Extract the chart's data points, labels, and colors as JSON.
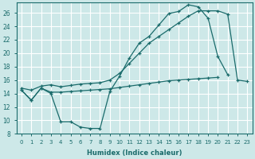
{
  "bg_color": "#cde8e8",
  "line_color": "#1a6b6b",
  "grid_color": "#ffffff",
  "xlabel": "Humidex (Indice chaleur)",
  "ylim": [
    8,
    27.5
  ],
  "xlim": [
    -0.5,
    23.5
  ],
  "yticks": [
    8,
    10,
    12,
    14,
    16,
    18,
    20,
    22,
    24,
    26
  ],
  "xticks": [
    0,
    1,
    2,
    3,
    4,
    5,
    6,
    7,
    8,
    9,
    10,
    11,
    12,
    13,
    14,
    15,
    16,
    17,
    18,
    19,
    20,
    21,
    22,
    23
  ],
  "x": [
    0,
    1,
    2,
    3,
    4,
    5,
    6,
    7,
    8,
    9,
    10,
    11,
    12,
    13,
    14,
    15,
    16,
    17,
    18,
    19,
    20,
    21,
    22,
    23
  ],
  "line_a": [
    14.5,
    13.0,
    14.8,
    14.0,
    9.8,
    9.8,
    9.0,
    8.8,
    8.8,
    14.3,
    16.6,
    19.3,
    21.5,
    22.5,
    24.2,
    25.9,
    26.2,
    27.2,
    26.9,
    25.2,
    19.5,
    16.8,
    null,
    null
  ],
  "line_b": [
    14.8,
    14.5,
    15.1,
    15.3,
    15.0,
    15.2,
    15.4,
    15.5,
    15.6,
    16.0,
    17.0,
    18.5,
    20.0,
    21.5,
    22.5,
    23.5,
    24.5,
    25.5,
    26.3,
    26.3,
    26.3,
    25.8,
    16.0,
    15.8
  ],
  "line_c": [
    14.5,
    13.0,
    14.8,
    14.2,
    14.2,
    14.3,
    14.4,
    14.5,
    14.6,
    14.7,
    14.9,
    15.1,
    15.3,
    15.5,
    15.7,
    15.9,
    16.0,
    16.1,
    16.2,
    16.3,
    16.4,
    null,
    null,
    null
  ]
}
